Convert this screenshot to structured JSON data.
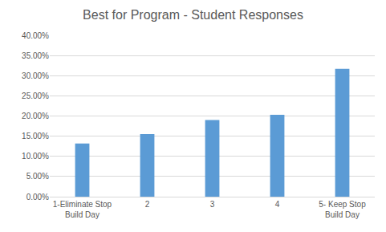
{
  "chart_data": {
    "type": "bar",
    "title": "Best for Program - Student Responses",
    "categories": [
      "1-Eliminate Stop Build Day",
      "2",
      "3",
      "4",
      "5- Keep Stop Build Day"
    ],
    "values": [
      13.2,
      15.5,
      19.0,
      20.3,
      31.7
    ],
    "color": "#5b9bd5",
    "ylim": [
      0,
      40
    ],
    "yticks": [
      {
        "value": 0,
        "label": "0.00%"
      },
      {
        "value": 5,
        "label": "5.00%"
      },
      {
        "value": 10,
        "label": "10.00%"
      },
      {
        "value": 15,
        "label": "15.00%"
      },
      {
        "value": 20,
        "label": "20.00%"
      },
      {
        "value": 25,
        "label": "25.00%"
      },
      {
        "value": 30,
        "label": "30.00%"
      },
      {
        "value": 35,
        "label": "35.00%"
      },
      {
        "value": 40,
        "label": "40.00%"
      }
    ],
    "grid": true
  }
}
